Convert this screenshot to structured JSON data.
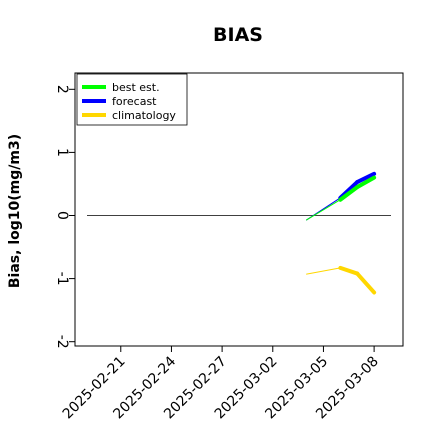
{
  "chart_data": {
    "type": "line",
    "title": "BIAS",
    "xlabel": "",
    "ylabel": "Bias, log10(mg/m3)",
    "ylim": [
      -2.1,
      2.1
    ],
    "yticks": [
      -2,
      -1,
      0,
      1,
      2
    ],
    "ytick_labels": [
      "-2",
      "-1",
      "0",
      "1",
      "2"
    ],
    "xlim": [
      "2025-02-19",
      "2025-03-09"
    ],
    "xticks": [
      "2025-02-21",
      "2025-02-24",
      "2025-02-27",
      "2025-03-02",
      "2025-03-05",
      "2025-03-08"
    ],
    "xtick_labels": [
      "2025-02-21",
      "2025-02-24",
      "2025-02-27",
      "2025-03-02",
      "2025-03-05",
      "2025-03-08"
    ],
    "highlighted_xtick": "2025-02-27",
    "highlight_color": "#228B22",
    "reference_line": 0,
    "legend_position": "top-left",
    "series": [
      {
        "name": "best est.",
        "color": "#00ff00",
        "points": [
          [
            "2025-03-04",
            -0.07
          ],
          [
            "2025-03-06",
            0.25
          ],
          [
            "2025-03-07",
            0.45
          ],
          [
            "2025-03-08",
            0.6
          ]
        ]
      },
      {
        "name": "forecast",
        "color": "#0000ff",
        "points": [
          [
            "2025-03-04",
            -0.07
          ],
          [
            "2025-03-06",
            0.28
          ],
          [
            "2025-03-07",
            0.53
          ],
          [
            "2025-03-08",
            0.66
          ]
        ]
      },
      {
        "name": "climatology",
        "color": "#ffd700",
        "points": [
          [
            "2025-03-04",
            -0.93
          ],
          [
            "2025-03-06",
            -0.83
          ],
          [
            "2025-03-07",
            -0.92
          ],
          [
            "2025-03-08",
            -1.22
          ]
        ]
      }
    ]
  }
}
